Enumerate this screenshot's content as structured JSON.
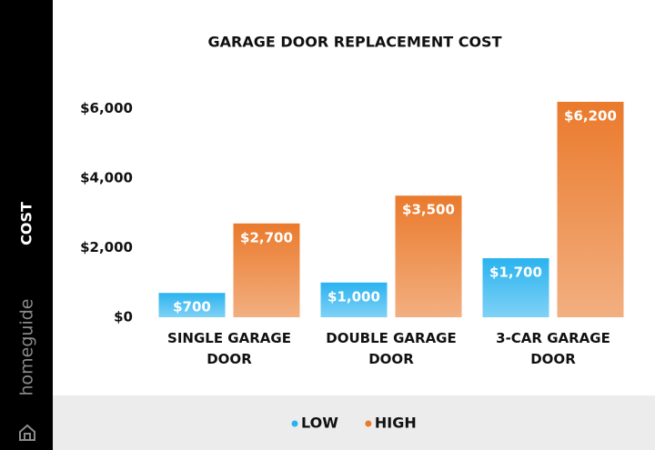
{
  "brand": "homeguide",
  "chart_data": {
    "type": "bar",
    "title": "GARAGE DOOR REPLACEMENT COST",
    "y_label": "COST",
    "categories": [
      "SINGLE GARAGE DOOR",
      "DOUBLE GARAGE DOOR",
      "3-CAR GARAGE DOOR"
    ],
    "series": [
      {
        "name": "LOW",
        "color": "#2ab3ef",
        "values": [
          700,
          1000,
          1700
        ],
        "value_labels": [
          "$700",
          "$1,000",
          "$1,700"
        ]
      },
      {
        "name": "HIGH",
        "color": "#ea7a2c",
        "values": [
          2700,
          3500,
          6200
        ],
        "value_labels": [
          "$2,700",
          "$3,500",
          "$6,200"
        ]
      }
    ],
    "ylim": [
      0,
      6200
    ],
    "yticks": [
      {
        "value": 0,
        "label": "$0"
      },
      {
        "value": 2000,
        "label": "$2,000"
      },
      {
        "value": 4000,
        "label": "$4,000"
      },
      {
        "value": 6000,
        "label": "$6,000"
      }
    ],
    "grid": false
  }
}
